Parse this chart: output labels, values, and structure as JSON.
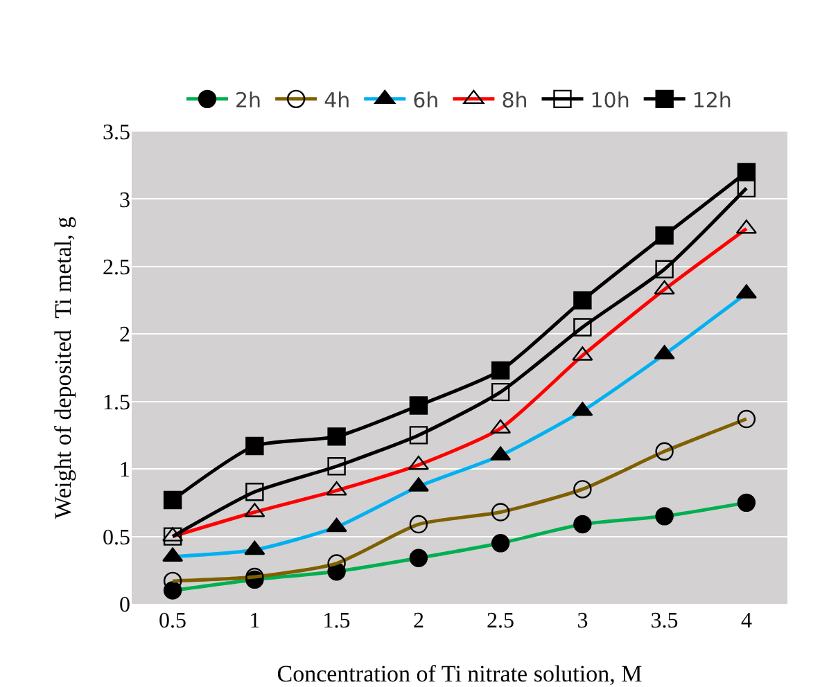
{
  "chart_data": {
    "type": "line",
    "xlabel": "Concentration of Ti nitrate solution, M",
    "ylabel": "Weight of deposited  Ti metal, g",
    "categories": [
      "0.5",
      "1",
      "1.5",
      "2",
      "2.5",
      "3",
      "3.5",
      "4"
    ],
    "series": [
      {
        "name": "2h",
        "color": "#00b050",
        "marker": "circle",
        "values": [
          0.1,
          0.18,
          0.24,
          0.34,
          0.45,
          0.59,
          0.65,
          0.75
        ]
      },
      {
        "name": "4h",
        "color": "#7f6000",
        "marker": "circle",
        "values": [
          0.17,
          0.2,
          0.3,
          0.59,
          0.68,
          0.85,
          1.13,
          1.37
        ]
      },
      {
        "name": "6h",
        "color": "#00b0f0",
        "marker": "triangle",
        "values": [
          0.35,
          0.4,
          0.57,
          0.87,
          1.1,
          1.43,
          1.85,
          2.3
        ]
      },
      {
        "name": "8h",
        "color": "#ff0000",
        "marker": "triangle",
        "values": [
          0.5,
          0.68,
          0.84,
          1.03,
          1.3,
          1.84,
          2.33,
          2.78
        ]
      },
      {
        "name": "10h",
        "color": "#000000",
        "marker": "square",
        "values": [
          0.5,
          0.83,
          1.02,
          1.25,
          1.57,
          2.05,
          2.48,
          3.08
        ]
      },
      {
        "name": "12h",
        "color": "#000000",
        "marker": "square",
        "values": [
          0.77,
          1.17,
          1.24,
          1.47,
          1.73,
          2.25,
          2.73,
          3.2
        ]
      }
    ],
    "ylim": [
      0,
      3.5
    ],
    "yticks": [
      0,
      0.5,
      1,
      1.5,
      2,
      2.5,
      3,
      3.5
    ],
    "grid": "y",
    "legend": "top"
  }
}
